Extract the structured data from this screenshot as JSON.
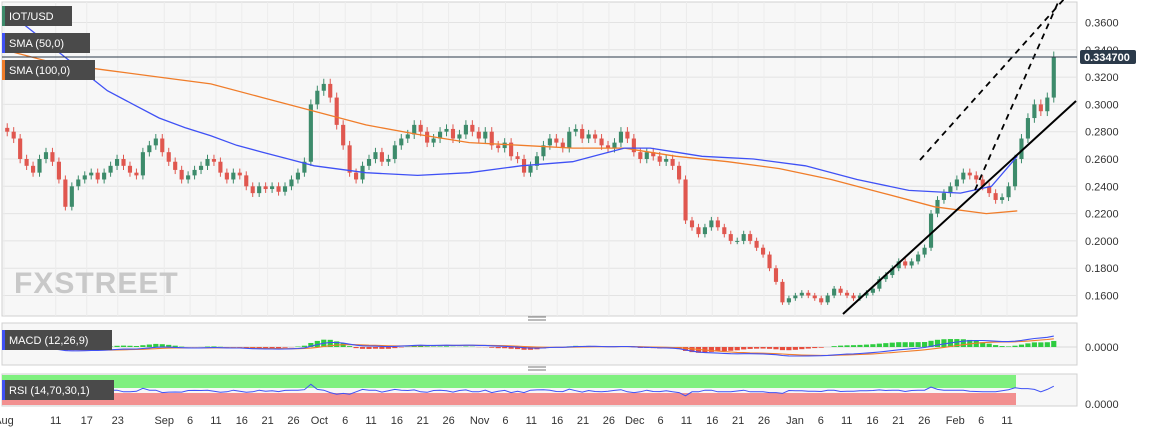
{
  "chart_data": [
    {
      "type": "candlestick",
      "title": "IOT/USD",
      "indicators": [
        {
          "name": "SMA (50,0)",
          "color": "#3f51f5"
        },
        {
          "name": "SMA (100,0)",
          "color": "#f07d2a"
        }
      ],
      "last_price": "0.334700",
      "ylim": [
        0.145,
        0.375
      ],
      "y_ticks": [
        "0.3600",
        "0.3400",
        "0.3200",
        "0.3000",
        "0.2800",
        "0.2600",
        "0.2400",
        "0.2200",
        "0.2000",
        "0.1800",
        "0.1600"
      ],
      "y_tick_values": [
        0.36,
        0.34,
        0.32,
        0.3,
        0.28,
        0.26,
        0.24,
        0.22,
        0.2,
        0.18,
        0.16
      ],
      "x_ticks": [
        "Aug",
        "11",
        "17",
        "23",
        "Sep",
        "6",
        "11",
        "16",
        "21",
        "26",
        "Oct",
        "6",
        "11",
        "16",
        "21",
        "26",
        "Nov",
        "6",
        "11",
        "16",
        "21",
        "26",
        "Dec",
        "6",
        "11",
        "16",
        "21",
        "26",
        "Jan",
        "6",
        "11",
        "16",
        "21",
        "26",
        "Feb",
        "6",
        "11"
      ],
      "x_tick_days": [
        0,
        10,
        16,
        22,
        31,
        36,
        41,
        46,
        51,
        56,
        61,
        66,
        71,
        76,
        81,
        86,
        92,
        97,
        102,
        107,
        112,
        117,
        122,
        127,
        132,
        137,
        142,
        147,
        153,
        158,
        163,
        168,
        173,
        178,
        184,
        189,
        194
      ],
      "closes": [
        0.28,
        0.275,
        0.26,
        0.255,
        0.25,
        0.26,
        0.265,
        0.258,
        0.245,
        0.225,
        0.24,
        0.245,
        0.248,
        0.25,
        0.245,
        0.25,
        0.255,
        0.26,
        0.255,
        0.25,
        0.248,
        0.265,
        0.27,
        0.275,
        0.265,
        0.258,
        0.252,
        0.245,
        0.248,
        0.252,
        0.255,
        0.26,
        0.258,
        0.25,
        0.245,
        0.25,
        0.248,
        0.24,
        0.235,
        0.24,
        0.238,
        0.24,
        0.236,
        0.24,
        0.245,
        0.25,
        0.258,
        0.3,
        0.31,
        0.315,
        0.305,
        0.285,
        0.27,
        0.25,
        0.245,
        0.255,
        0.26,
        0.265,
        0.258,
        0.26,
        0.27,
        0.275,
        0.278,
        0.285,
        0.28,
        0.272,
        0.275,
        0.28,
        0.282,
        0.275,
        0.278,
        0.285,
        0.28,
        0.275,
        0.28,
        0.27,
        0.268,
        0.272,
        0.262,
        0.26,
        0.25,
        0.255,
        0.262,
        0.27,
        0.275,
        0.272,
        0.268,
        0.28,
        0.282,
        0.275,
        0.278,
        0.275,
        0.27,
        0.268,
        0.272,
        0.28,
        0.275,
        0.265,
        0.26,
        0.265,
        0.262,
        0.258,
        0.26,
        0.255,
        0.245,
        0.215,
        0.21,
        0.205,
        0.21,
        0.215,
        0.21,
        0.205,
        0.2,
        0.2,
        0.205,
        0.2,
        0.195,
        0.19,
        0.18,
        0.17,
        0.155,
        0.158,
        0.16,
        0.162,
        0.16,
        0.158,
        0.155,
        0.16,
        0.165,
        0.162,
        0.16,
        0.158,
        0.16,
        0.162,
        0.165,
        0.172,
        0.175,
        0.18,
        0.185,
        0.182,
        0.185,
        0.19,
        0.195,
        0.22,
        0.23,
        0.235,
        0.24,
        0.245,
        0.25,
        0.248,
        0.245,
        0.24,
        0.235,
        0.23,
        0.232,
        0.24,
        0.26,
        0.275,
        0.29,
        0.3,
        0.295,
        0.305,
        0.3347
      ],
      "sma50": [
        0.37,
        0.355,
        0.34,
        0.325,
        0.31,
        0.3,
        0.29,
        0.283,
        0.277,
        0.27,
        0.265,
        0.26,
        0.255,
        0.25,
        0.248,
        0.25,
        0.255,
        0.258,
        0.263,
        0.268,
        0.268,
        0.265,
        0.262,
        0.26,
        0.255,
        0.245,
        0.237,
        0.235,
        0.24,
        0.262
      ],
      "sma50_days": [
        0,
        5,
        10,
        15,
        20,
        25,
        30,
        35,
        40,
        45,
        50,
        55,
        60,
        70,
        80,
        90,
        100,
        110,
        115,
        120,
        125,
        130,
        135,
        145,
        155,
        165,
        175,
        185,
        191,
        196
      ],
      "sma100": [
        0.34,
        0.33,
        0.325,
        0.32,
        0.315,
        0.305,
        0.295,
        0.285,
        0.278,
        0.272,
        0.27,
        0.268,
        0.268,
        0.262,
        0.258,
        0.253,
        0.245,
        0.235,
        0.225,
        0.22,
        0.222
      ],
      "sma100_days": [
        0,
        10,
        20,
        30,
        40,
        50,
        60,
        70,
        80,
        90,
        100,
        110,
        120,
        130,
        140,
        150,
        160,
        170,
        180,
        190,
        196
      ]
    },
    {
      "type": "line",
      "title": "MACD (12,26,9)",
      "y_ticks": [
        "0.0000"
      ]
    },
    {
      "type": "line",
      "title": "RSI (14,70,30,1)",
      "y_ticks": [
        "0.0000"
      ]
    }
  ],
  "watermark": "FXSTREET",
  "colors": {
    "up": "#3d8b6b",
    "down": "#e0574f",
    "sma50": "#3f51f5",
    "sma100": "#f07d2a",
    "price_line": "#2b3a4a"
  }
}
